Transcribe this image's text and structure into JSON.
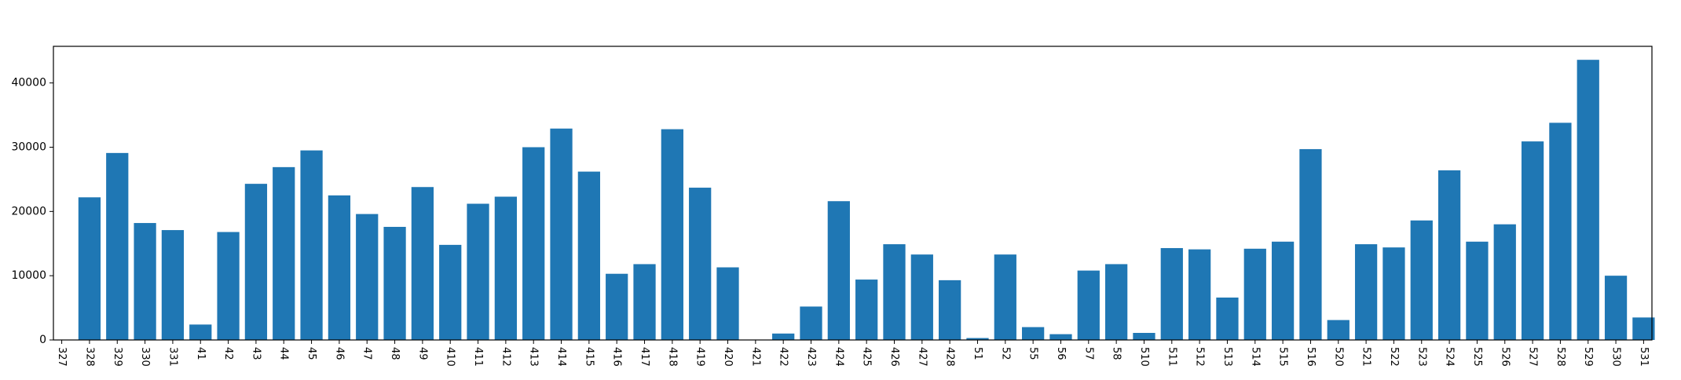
{
  "chart_data": {
    "type": "bar",
    "title": "",
    "xlabel": "",
    "ylabel": "",
    "ylim": [
      0,
      45700
    ],
    "grid": false,
    "bar_color": "#1f77b4",
    "y_ticks": [
      0,
      10000,
      20000,
      30000,
      40000
    ],
    "categories": [
      "327",
      "328",
      "329",
      "330",
      "331",
      "41",
      "42",
      "43",
      "44",
      "45",
      "46",
      "47",
      "48",
      "49",
      "410",
      "411",
      "412",
      "413",
      "414",
      "415",
      "416",
      "417",
      "418",
      "419",
      "420",
      "421",
      "422",
      "423",
      "424",
      "425",
      "426",
      "427",
      "428",
      "51",
      "52",
      "55",
      "56",
      "57",
      "58",
      "510",
      "511",
      "512",
      "513",
      "514",
      "515",
      "516",
      "520",
      "521",
      "522",
      "523",
      "524",
      "525",
      "526",
      "527",
      "528",
      "529",
      "530",
      "531"
    ],
    "values": [
      0,
      22200,
      29100,
      18200,
      17100,
      2400,
      16800,
      24300,
      26900,
      29500,
      22500,
      19600,
      17600,
      23800,
      14800,
      21200,
      22300,
      30000,
      32900,
      26200,
      10300,
      11800,
      32800,
      23700,
      11300,
      0,
      1000,
      5200,
      21600,
      9400,
      14900,
      13300,
      9300,
      300,
      13300,
      2000,
      900,
      10800,
      11800,
      1100,
      14300,
      14100,
      6600,
      14200,
      15300,
      29700,
      3100,
      14900,
      14400,
      18600,
      26400,
      15300,
      18000,
      30900,
      33800,
      43600,
      10000,
      3500
    ]
  }
}
